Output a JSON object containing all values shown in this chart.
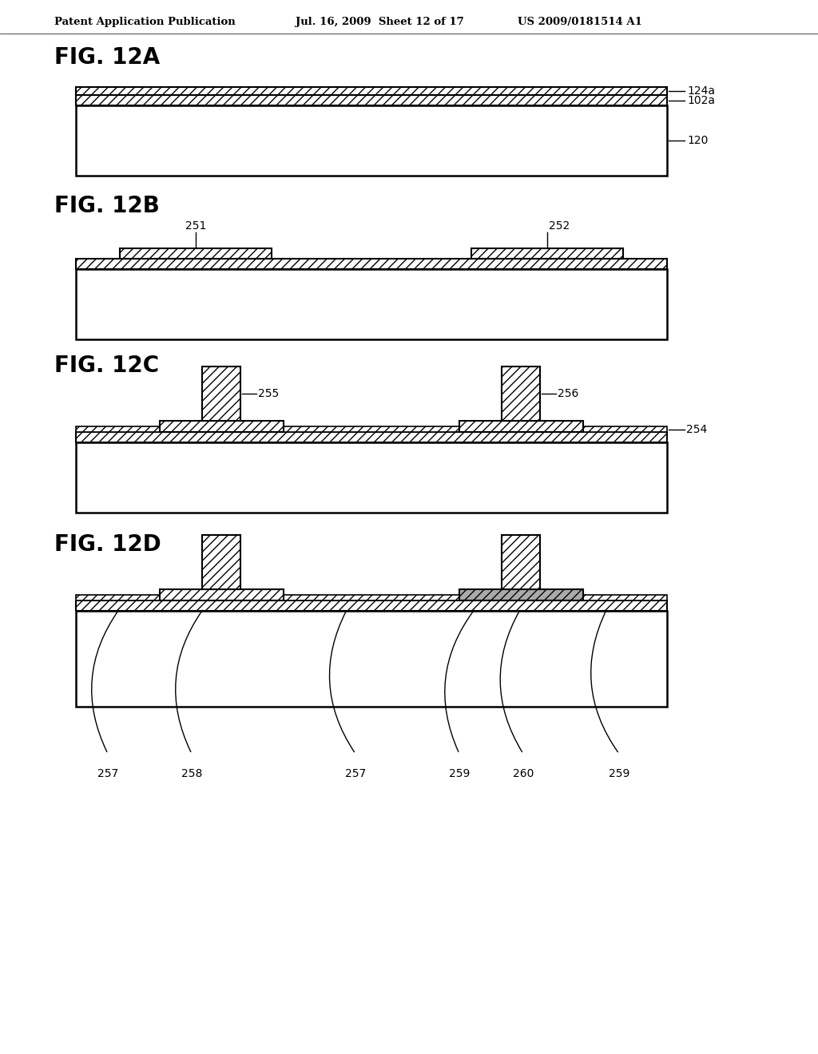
{
  "bg_color": "#ffffff",
  "header_left": "Patent Application Publication",
  "header_mid": "Jul. 16, 2009  Sheet 12 of 17",
  "header_right": "US 2009/0181514 A1",
  "line_color": "#000000"
}
